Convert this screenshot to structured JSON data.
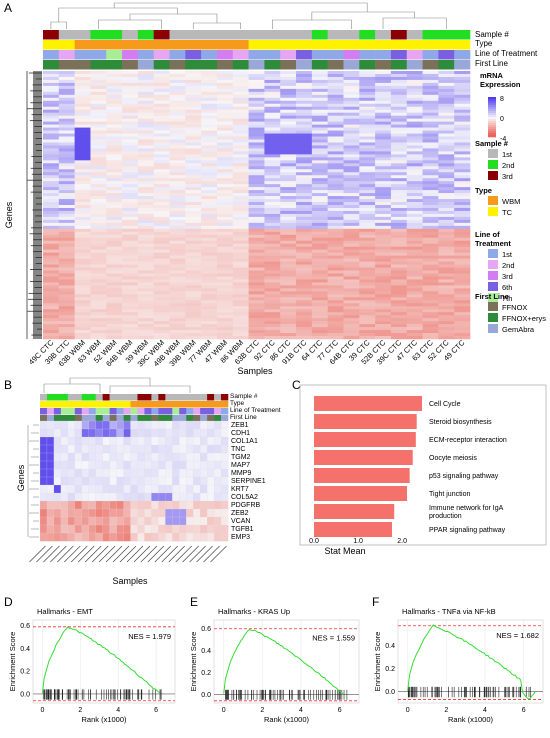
{
  "panels": {
    "a": "A",
    "b": "B",
    "c": "C",
    "d": "D",
    "e": "E",
    "f": "F"
  },
  "panel_a": {
    "track_labels": [
      "Sample #",
      "Type",
      "Line of Treatment",
      "First Line"
    ],
    "x_title": "Samples",
    "y_title": "Genes",
    "samples": [
      "49C CTC",
      "39B CTC",
      "63B WBM",
      "63 WBM",
      "52 WBM",
      "64B WBM",
      "39 WBM",
      "39C WBM",
      "49B WBM",
      "39B WBM",
      "77 WBM",
      "47 WBM",
      "86 WBM",
      "63B CTC",
      "92 CTC",
      "86 CTC",
      "91B CTC",
      "64 CTC",
      "77 CTC",
      "64B CTC",
      "39 CTC",
      "52B CTC",
      "39C CTC",
      "47 CTC",
      "63 CTC",
      "52 CTC",
      "49 CTC"
    ],
    "legend": {
      "expr_title": "mRNA\nExpression",
      "expr_ticks": [
        "8",
        "0",
        "-4"
      ],
      "sample_title": "Sample #",
      "sample_items": [
        {
          "label": "1st",
          "color": "#b8b8b8"
        },
        {
          "label": "2nd",
          "color": "#22dd22"
        },
        {
          "label": "3rd",
          "color": "#8b0000"
        }
      ],
      "type_title": "Type",
      "type_items": [
        {
          "label": "WBM",
          "color": "#f59a1a"
        },
        {
          "label": "TC",
          "color": "#fff200"
        }
      ],
      "lot_title": "Line of\nTreatment",
      "lot_items": [
        {
          "label": "1st",
          "color": "#8fa8e8"
        },
        {
          "label": "2nd",
          "color": "#e7a6f2"
        },
        {
          "label": "3rd",
          "color": "#d27ef0"
        },
        {
          "label": "6th",
          "color": "#7a5fe0"
        },
        {
          "label": "7th",
          "color": "#a8ee96"
        }
      ],
      "fl_title": "First Line",
      "fl_items": [
        {
          "label": "FFNOX",
          "color": "#7a7158"
        },
        {
          "label": "FFNOX+erys",
          "color": "#2e8b3a"
        },
        {
          "label": "GemAbra",
          "color": "#9aa8d8"
        }
      ]
    }
  },
  "panel_b": {
    "track_labels": [
      "Sample #",
      "Type",
      "Line of Treatment",
      "First Line"
    ],
    "genes": [
      "ZEB1",
      "CDH1",
      "COL1A1",
      "TNC",
      "TGM2",
      "MAP7",
      "MMP9",
      "SERPINE1",
      "KRT7",
      "COL5A2",
      "PDGFRB",
      "ZEB2",
      "VCAN",
      "TGFB1",
      "EMP3"
    ],
    "x_title": "Samples",
    "y_title": "Genes"
  },
  "panel_c": {
    "chart_data": {
      "type": "bar",
      "orientation": "horizontal",
      "categories": [
        "Cell Cycle",
        "Steroid biosynthesis",
        "ECM-receptor interaction",
        "Oocyte meiosis",
        "p53 signaling pathway",
        "Tight junction",
        "Immune network for IgA production",
        "PPAR signaling pathway"
      ],
      "labels_display": [
        "Cell Cycle",
        "Steroid biosynthesis",
        "ECM-receptor interaction",
        "Oocyte meiosis",
        "p53 signaling pathway",
        "Tight junction",
        "Immune network for IgA\nproduction",
        "PPAR signaling pathway"
      ],
      "values": [
        2.45,
        2.33,
        2.31,
        2.24,
        2.17,
        2.11,
        1.82,
        1.77
      ],
      "xlabel": "Stat Mean",
      "xlim": [
        0,
        2.6
      ],
      "xticks": [
        "0.0",
        "1.0",
        "2.0"
      ],
      "color": "#f4726b"
    }
  },
  "gsea": {
    "chart_data": [
      {
        "type": "line",
        "title": "Hallmarks - EMT",
        "nes": "NES = 1.979",
        "xlabel": "Rank (x1000)",
        "ylabel": "Enrichment Score",
        "ylim": [
          -0.08,
          0.65
        ],
        "yticks": [
          "0.6",
          "0.4",
          "0.2",
          "0.0"
        ],
        "xticks": [
          "0",
          "2",
          "4",
          "6"
        ],
        "peak": 0.59,
        "peak_x": 1.3,
        "end_x": 6.2
      },
      {
        "type": "line",
        "title": "Hallmarks - KRAS Up",
        "nes": "NES = 1.559",
        "xlabel": "Rank (x1000)",
        "ylabel": "Enrichment Score",
        "ylim": [
          -0.08,
          0.68
        ],
        "yticks": [
          "0.6",
          "0.4",
          "0.2",
          "0.0"
        ],
        "xticks": [
          "0",
          "2",
          "4",
          "6"
        ],
        "peak": 0.6,
        "peak_x": 1.3,
        "end_x": 6.2
      },
      {
        "type": "line",
        "title": "Hallmarks - TNFa via NF-kB",
        "nes": "NES = 1.682",
        "xlabel": "Rank (x1000)",
        "ylabel": "Enrichment Score",
        "ylim": [
          -0.1,
          0.62
        ],
        "yticks": [
          "0.4",
          "0.2",
          "0.0"
        ],
        "xticks": [
          "0",
          "2",
          "4",
          "6"
        ],
        "peak": 0.57,
        "peak_x": 1.3,
        "end_x": 6.6
      }
    ]
  }
}
